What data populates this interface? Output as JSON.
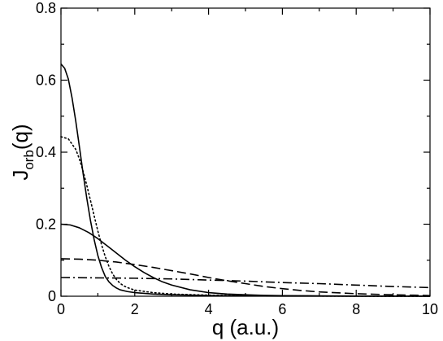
{
  "chart_data": {
    "type": "line",
    "title": "",
    "xlabel": "q (a.u.)",
    "ylabel": {
      "main": "J",
      "sub": "orb",
      "rest": "(q)"
    },
    "xlim": [
      0,
      10
    ],
    "ylim": [
      0,
      0.8
    ],
    "x_ticks": [
      0,
      2,
      4,
      6,
      8,
      10
    ],
    "y_ticks": [
      0,
      0.2,
      0.4,
      0.6,
      0.8
    ],
    "x_tick_labels": [
      "0",
      "2",
      "4",
      "6",
      "8",
      "10"
    ],
    "y_tick_labels": [
      "0",
      "0.2",
      "0.4",
      "0.6",
      "0.8"
    ],
    "grid": false,
    "legend": "none",
    "series": [
      {
        "style": "solid",
        "x": [
          0,
          0.1,
          0.2,
          0.3,
          0.4,
          0.5,
          0.6,
          0.7,
          0.8,
          0.9,
          1.0,
          1.1,
          1.2,
          1.3,
          1.4,
          1.5,
          1.6,
          1.8,
          2.0,
          2.5,
          3.0,
          4.0,
          5.0,
          6.0,
          8.0,
          10.0
        ],
        "y": [
          0.645,
          0.633,
          0.603,
          0.551,
          0.487,
          0.415,
          0.341,
          0.272,
          0.21,
          0.157,
          0.113,
          0.08,
          0.055,
          0.04,
          0.03,
          0.023,
          0.018,
          0.013,
          0.01,
          0.006,
          0.004,
          0.002,
          0.001,
          0.0005,
          0.0002,
          0.0001
        ]
      },
      {
        "style": "dotted",
        "x": [
          0,
          0.2,
          0.4,
          0.5,
          0.6,
          0.7,
          0.8,
          0.9,
          1.0,
          1.1,
          1.2,
          1.3,
          1.4,
          1.5,
          1.6,
          1.7,
          1.8,
          2.0,
          2.5,
          3.0,
          4.0,
          5.0,
          6.0,
          8.0,
          10.0
        ],
        "y": [
          0.443,
          0.437,
          0.408,
          0.381,
          0.347,
          0.308,
          0.266,
          0.223,
          0.181,
          0.143,
          0.11,
          0.083,
          0.062,
          0.047,
          0.036,
          0.029,
          0.024,
          0.017,
          0.01,
          0.006,
          0.003,
          0.0015,
          0.0008,
          0.0003,
          0.0001
        ]
      },
      {
        "style": "solid",
        "x": [
          0,
          0.25,
          0.5,
          0.75,
          1.0,
          1.25,
          1.5,
          1.75,
          2.0,
          2.25,
          2.5,
          2.75,
          3.0,
          3.5,
          4.0,
          4.5,
          5.0,
          5.5,
          6.0,
          7.0,
          8.0,
          10.0
        ],
        "y": [
          0.2,
          0.198,
          0.19,
          0.177,
          0.16,
          0.14,
          0.12,
          0.1,
          0.082,
          0.066,
          0.052,
          0.04,
          0.031,
          0.018,
          0.01,
          0.006,
          0.004,
          0.0025,
          0.0017,
          0.001,
          0.0005,
          0.0002
        ]
      },
      {
        "style": "dashed",
        "x": [
          0,
          0.5,
          1.0,
          1.5,
          2.0,
          2.5,
          3.0,
          3.5,
          4.0,
          4.5,
          5.0,
          5.5,
          6.0,
          6.5,
          7.0,
          8.0,
          9.0,
          10.0
        ],
        "y": [
          0.104,
          0.103,
          0.1,
          0.095,
          0.088,
          0.08,
          0.071,
          0.062,
          0.052,
          0.043,
          0.035,
          0.027,
          0.021,
          0.016,
          0.012,
          0.007,
          0.004,
          0.002
        ]
      },
      {
        "style": "dashdot",
        "x": [
          0,
          1.0,
          2.0,
          3.0,
          4.0,
          5.0,
          6.0,
          7.0,
          8.0,
          9.0,
          10.0
        ],
        "y": [
          0.052,
          0.051,
          0.05,
          0.048,
          0.045,
          0.042,
          0.038,
          0.035,
          0.031,
          0.027,
          0.024
        ]
      }
    ]
  }
}
